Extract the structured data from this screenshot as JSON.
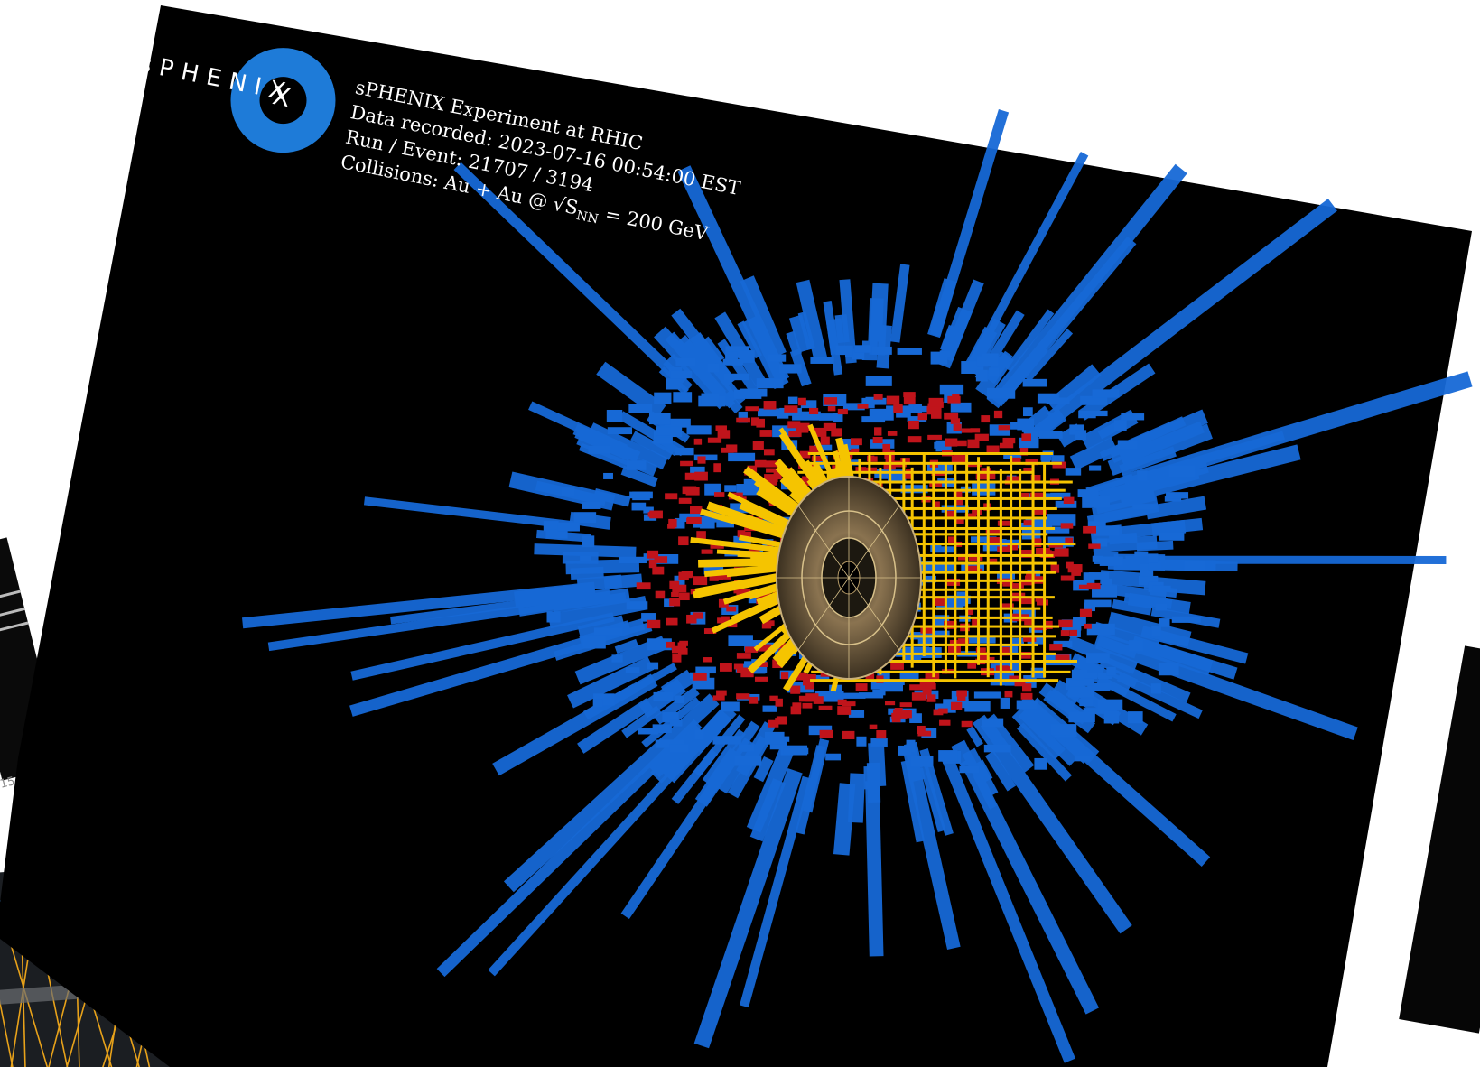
{
  "header": {
    "logo_text": "sPHENIX",
    "experiment": "sPHENIX Experiment at RHIC",
    "data_recorded": "Data recorded: 2023-07-16 00:54:00 EST",
    "run_event": "Run / Event: 21707 / 3194",
    "collisions_prefix": "Collisions: Au + Au @ √S",
    "collisions_subscript": "NN",
    "collisions_suffix": " = 200 GeV"
  },
  "background": {
    "left_card_label": "15"
  },
  "colors": {
    "frame": "#000000",
    "outer_calorimeter": "#1769d6",
    "inner_calorimeter": "#c0141b",
    "em_calorimeter": "#f5c400",
    "tracker": "#8a7350",
    "logo_blue": "#1e7bd8"
  }
}
